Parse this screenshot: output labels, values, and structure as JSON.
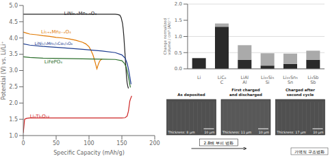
{
  "chart_data": [
    {
      "type": "line",
      "xlabel": "Specific Capacity (mAh/g)",
      "ylabel": "Potential (V) vs. Li/Li⁺",
      "xlim": [
        0,
        200
      ],
      "ylim": [
        1.0,
        5.0
      ],
      "xticks": [
        0,
        50,
        100,
        150,
        200
      ],
      "yticks": [
        {
          "value": 1.0,
          "label": "1.0"
        },
        1.5,
        {
          "value": 2.0,
          "label": "2.0"
        },
        2.5,
        {
          "value": 3.0,
          "label": "3.0"
        },
        3.5,
        {
          "value": 4.0,
          "label": "4.0"
        },
        4.5,
        {
          "value": 5.0,
          "label": "5.0"
        }
      ],
      "series": [
        {
          "color": "#222222",
          "x": [
            0,
            10,
            30,
            60,
            90,
            120,
            140,
            144,
            147,
            149,
            151,
            152,
            153,
            154,
            155,
            156,
            157,
            158,
            159,
            160
          ],
          "values": [
            4.73,
            4.73,
            4.73,
            4.73,
            4.73,
            4.73,
            4.73,
            4.72,
            4.7,
            4.62,
            4.45,
            4.28,
            4.05,
            3.75,
            3.45,
            3.12,
            2.82,
            2.62,
            2.52,
            2.45
          ]
        },
        {
          "color": "#e07800",
          "x": [
            0,
            5,
            10,
            20,
            30,
            40,
            50,
            60,
            70,
            80,
            90,
            95,
            100,
            103,
            106,
            108,
            110,
            112,
            114,
            116,
            118,
            120
          ],
          "values": [
            4.18,
            4.15,
            4.12,
            4.1,
            4.07,
            4.05,
            4.02,
            4.0,
            3.97,
            3.93,
            3.87,
            3.82,
            3.73,
            3.62,
            3.48,
            3.35,
            3.2,
            3.05,
            3.18,
            3.28,
            3.33,
            3.35
          ]
        },
        {
          "color": "#1a3a8f",
          "x": [
            0,
            10,
            30,
            60,
            90,
            120,
            140,
            150,
            155,
            158,
            160,
            162,
            163,
            164
          ],
          "values": [
            3.82,
            3.78,
            3.74,
            3.7,
            3.65,
            3.6,
            3.55,
            3.48,
            3.38,
            3.22,
            3.05,
            2.82,
            2.7,
            2.58
          ]
        },
        {
          "color": "#2a6e2a",
          "x": [
            0,
            10,
            30,
            60,
            90,
            120,
            140,
            150,
            154,
            157,
            159,
            161,
            162,
            163
          ],
          "values": [
            3.42,
            3.4,
            3.38,
            3.37,
            3.36,
            3.35,
            3.34,
            3.3,
            3.22,
            3.08,
            2.9,
            2.7,
            2.58,
            2.48
          ]
        },
        {
          "color": "#cc2222",
          "x": [
            0,
            2,
            5,
            10,
            30,
            60,
            90,
            120,
            150,
            155,
            158,
            160,
            161,
            162,
            163,
            164,
            165
          ],
          "values": [
            1.08,
            1.5,
            1.53,
            1.54,
            1.54,
            1.54,
            1.54,
            1.54,
            1.54,
            1.55,
            1.6,
            1.75,
            1.9,
            2.05,
            2.12,
            2.17,
            2.22
          ]
        }
      ],
      "annotations": [
        {
          "x": 60,
          "y": 4.75,
          "text": "LiNi₀.₅Mn₁.₅O₄",
          "color": "#222222"
        },
        {
          "x": 25,
          "y": 4.2,
          "text": "Li₁₊ₓMn₂₋ₓO₄",
          "color": "#e07800"
        },
        {
          "x": 15,
          "y": 3.84,
          "text": "LiNi₁/₃Mn₁/₃Co₁/₃O₄",
          "color": "#1a3a8f"
        },
        {
          "x": 30,
          "y": 3.28,
          "text": "LiFePO₄",
          "color": "#2a6e2a"
        },
        {
          "x": 8,
          "y": 1.6,
          "text": "Li₄Ti₅O₁₂",
          "color": "#cc2222"
        }
      ]
    },
    {
      "type": "bar",
      "stacked": true,
      "grid": true,
      "ylabel": "Change normalized volume / cm³ (Ah)⁻¹",
      "ylim": [
        0,
        2.0
      ],
      "yticks": [
        {
          "value": 0.0,
          "label": "0.0"
        },
        0.5,
        {
          "value": 1.0,
          "label": "1.0"
        },
        1.5,
        {
          "value": 2.0,
          "label": "2.0"
        }
      ],
      "categories": [
        "Li",
        "LiC₆\nC",
        "LiAl\nAl",
        "Li₂₂Si₅\nSi",
        "Li₂₂Sn₅\nSn",
        "Li₃Sb\nSb"
      ],
      "series": [
        {
          "color": "#2a2a2a",
          "values": [
            0.33,
            1.3,
            0.28,
            0.1,
            0.15,
            0.28
          ]
        },
        {
          "color": "#aaaaaa",
          "values": [
            0.0,
            0.1,
            0.45,
            0.38,
            0.32,
            0.28
          ]
        }
      ]
    },
    {
      "type": "image",
      "panels": [
        {
          "label": "As deposited",
          "thickness": "Thickness: 8 μm",
          "color": "#505050"
        },
        {
          "label": "First charged and discharged",
          "thickness": "Thickness: 11 μm",
          "color": "#585858"
        },
        {
          "label": "Charged after second cycle",
          "thickness": "Thickness: 17 μm",
          "color": "#505050"
        }
      ],
      "scale_bar": "10 μm",
      "arrow_text": "2.8배 부피 변화",
      "note": "가역적 구조변화"
    }
  ]
}
